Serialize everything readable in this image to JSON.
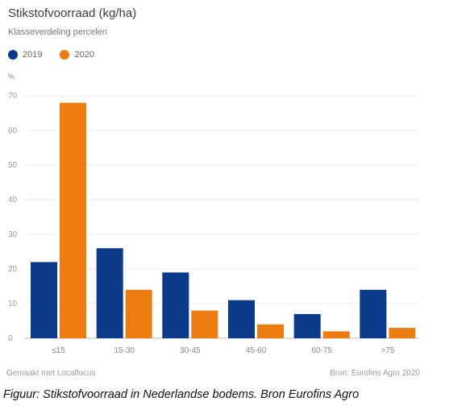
{
  "chart_data": {
    "type": "bar",
    "title": "Stikstofvoorraad (kg/ha)",
    "subtitle": "Klasseverdeling percelen",
    "ylabel": "%",
    "categories": [
      "≤15",
      "15-30",
      "30-45",
      "45-60",
      "60-75",
      ">75"
    ],
    "series": [
      {
        "name": "2019",
        "color": "#0b3a8a",
        "values": [
          22,
          26,
          19,
          11,
          7,
          14
        ]
      },
      {
        "name": "2020",
        "color": "#ee7d11",
        "values": [
          68,
          14,
          8,
          4,
          2,
          3
        ]
      }
    ],
    "yticks": [
      "0",
      "10",
      "20",
      "30",
      "40",
      "50",
      "60",
      "70"
    ],
    "ylim": [
      0,
      70
    ],
    "grid": true,
    "legend": "top-left"
  },
  "footer": {
    "made_with": "Gemaakt met Localfocus",
    "source": "Bron:  Eurofins Agro 2020"
  },
  "caption": "Figuur: Stikstofvoorraad in Nederlandse bodems. Bron Eurofins Agro"
}
